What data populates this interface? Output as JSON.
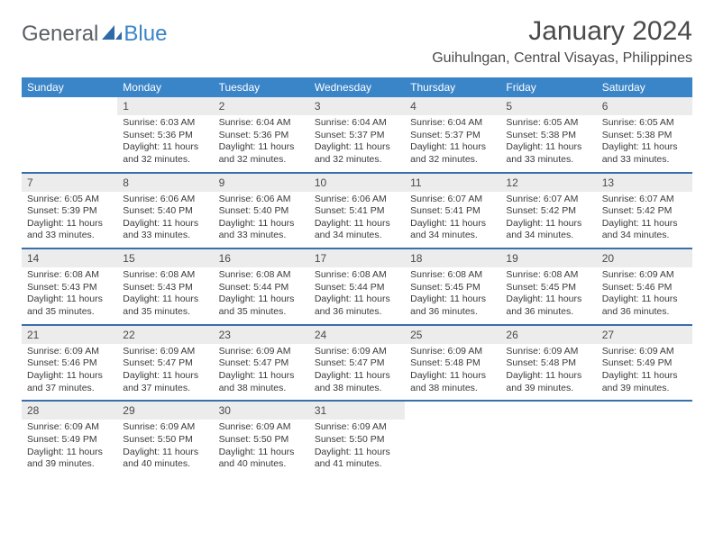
{
  "logo": {
    "word1": "General",
    "word2": "Blue"
  },
  "header": {
    "title": "January 2024",
    "location": "Guihulngan, Central Visayas, Philippines"
  },
  "colors": {
    "header_bg": "#3a84c8",
    "header_fg": "#ffffff",
    "row_divider": "#3a6fa8",
    "daynum_bg": "#ececec",
    "text": "#3a3a3a",
    "logo_gray": "#5a5f66",
    "logo_blue": "#3a84c8",
    "page_bg": "#ffffff"
  },
  "typography": {
    "title_fontsize": 30,
    "location_fontsize": 16,
    "dayhead_fontsize": 12,
    "body_fontsize": 10.5,
    "logo_fontsize": 24
  },
  "calendar": {
    "type": "table",
    "columns": [
      "Sunday",
      "Monday",
      "Tuesday",
      "Wednesday",
      "Thursday",
      "Friday",
      "Saturday"
    ],
    "weeks": [
      [
        null,
        {
          "n": "1",
          "sunrise": "Sunrise: 6:03 AM",
          "sunset": "Sunset: 5:36 PM",
          "daylight": "Daylight: 11 hours and 32 minutes."
        },
        {
          "n": "2",
          "sunrise": "Sunrise: 6:04 AM",
          "sunset": "Sunset: 5:36 PM",
          "daylight": "Daylight: 11 hours and 32 minutes."
        },
        {
          "n": "3",
          "sunrise": "Sunrise: 6:04 AM",
          "sunset": "Sunset: 5:37 PM",
          "daylight": "Daylight: 11 hours and 32 minutes."
        },
        {
          "n": "4",
          "sunrise": "Sunrise: 6:04 AM",
          "sunset": "Sunset: 5:37 PM",
          "daylight": "Daylight: 11 hours and 32 minutes."
        },
        {
          "n": "5",
          "sunrise": "Sunrise: 6:05 AM",
          "sunset": "Sunset: 5:38 PM",
          "daylight": "Daylight: 11 hours and 33 minutes."
        },
        {
          "n": "6",
          "sunrise": "Sunrise: 6:05 AM",
          "sunset": "Sunset: 5:38 PM",
          "daylight": "Daylight: 11 hours and 33 minutes."
        }
      ],
      [
        {
          "n": "7",
          "sunrise": "Sunrise: 6:05 AM",
          "sunset": "Sunset: 5:39 PM",
          "daylight": "Daylight: 11 hours and 33 minutes."
        },
        {
          "n": "8",
          "sunrise": "Sunrise: 6:06 AM",
          "sunset": "Sunset: 5:40 PM",
          "daylight": "Daylight: 11 hours and 33 minutes."
        },
        {
          "n": "9",
          "sunrise": "Sunrise: 6:06 AM",
          "sunset": "Sunset: 5:40 PM",
          "daylight": "Daylight: 11 hours and 33 minutes."
        },
        {
          "n": "10",
          "sunrise": "Sunrise: 6:06 AM",
          "sunset": "Sunset: 5:41 PM",
          "daylight": "Daylight: 11 hours and 34 minutes."
        },
        {
          "n": "11",
          "sunrise": "Sunrise: 6:07 AM",
          "sunset": "Sunset: 5:41 PM",
          "daylight": "Daylight: 11 hours and 34 minutes."
        },
        {
          "n": "12",
          "sunrise": "Sunrise: 6:07 AM",
          "sunset": "Sunset: 5:42 PM",
          "daylight": "Daylight: 11 hours and 34 minutes."
        },
        {
          "n": "13",
          "sunrise": "Sunrise: 6:07 AM",
          "sunset": "Sunset: 5:42 PM",
          "daylight": "Daylight: 11 hours and 34 minutes."
        }
      ],
      [
        {
          "n": "14",
          "sunrise": "Sunrise: 6:08 AM",
          "sunset": "Sunset: 5:43 PM",
          "daylight": "Daylight: 11 hours and 35 minutes."
        },
        {
          "n": "15",
          "sunrise": "Sunrise: 6:08 AM",
          "sunset": "Sunset: 5:43 PM",
          "daylight": "Daylight: 11 hours and 35 minutes."
        },
        {
          "n": "16",
          "sunrise": "Sunrise: 6:08 AM",
          "sunset": "Sunset: 5:44 PM",
          "daylight": "Daylight: 11 hours and 35 minutes."
        },
        {
          "n": "17",
          "sunrise": "Sunrise: 6:08 AM",
          "sunset": "Sunset: 5:44 PM",
          "daylight": "Daylight: 11 hours and 36 minutes."
        },
        {
          "n": "18",
          "sunrise": "Sunrise: 6:08 AM",
          "sunset": "Sunset: 5:45 PM",
          "daylight": "Daylight: 11 hours and 36 minutes."
        },
        {
          "n": "19",
          "sunrise": "Sunrise: 6:08 AM",
          "sunset": "Sunset: 5:45 PM",
          "daylight": "Daylight: 11 hours and 36 minutes."
        },
        {
          "n": "20",
          "sunrise": "Sunrise: 6:09 AM",
          "sunset": "Sunset: 5:46 PM",
          "daylight": "Daylight: 11 hours and 36 minutes."
        }
      ],
      [
        {
          "n": "21",
          "sunrise": "Sunrise: 6:09 AM",
          "sunset": "Sunset: 5:46 PM",
          "daylight": "Daylight: 11 hours and 37 minutes."
        },
        {
          "n": "22",
          "sunrise": "Sunrise: 6:09 AM",
          "sunset": "Sunset: 5:47 PM",
          "daylight": "Daylight: 11 hours and 37 minutes."
        },
        {
          "n": "23",
          "sunrise": "Sunrise: 6:09 AM",
          "sunset": "Sunset: 5:47 PM",
          "daylight": "Daylight: 11 hours and 38 minutes."
        },
        {
          "n": "24",
          "sunrise": "Sunrise: 6:09 AM",
          "sunset": "Sunset: 5:47 PM",
          "daylight": "Daylight: 11 hours and 38 minutes."
        },
        {
          "n": "25",
          "sunrise": "Sunrise: 6:09 AM",
          "sunset": "Sunset: 5:48 PM",
          "daylight": "Daylight: 11 hours and 38 minutes."
        },
        {
          "n": "26",
          "sunrise": "Sunrise: 6:09 AM",
          "sunset": "Sunset: 5:48 PM",
          "daylight": "Daylight: 11 hours and 39 minutes."
        },
        {
          "n": "27",
          "sunrise": "Sunrise: 6:09 AM",
          "sunset": "Sunset: 5:49 PM",
          "daylight": "Daylight: 11 hours and 39 minutes."
        }
      ],
      [
        {
          "n": "28",
          "sunrise": "Sunrise: 6:09 AM",
          "sunset": "Sunset: 5:49 PM",
          "daylight": "Daylight: 11 hours and 39 minutes."
        },
        {
          "n": "29",
          "sunrise": "Sunrise: 6:09 AM",
          "sunset": "Sunset: 5:50 PM",
          "daylight": "Daylight: 11 hours and 40 minutes."
        },
        {
          "n": "30",
          "sunrise": "Sunrise: 6:09 AM",
          "sunset": "Sunset: 5:50 PM",
          "daylight": "Daylight: 11 hours and 40 minutes."
        },
        {
          "n": "31",
          "sunrise": "Sunrise: 6:09 AM",
          "sunset": "Sunset: 5:50 PM",
          "daylight": "Daylight: 11 hours and 41 minutes."
        },
        null,
        null,
        null
      ]
    ]
  }
}
